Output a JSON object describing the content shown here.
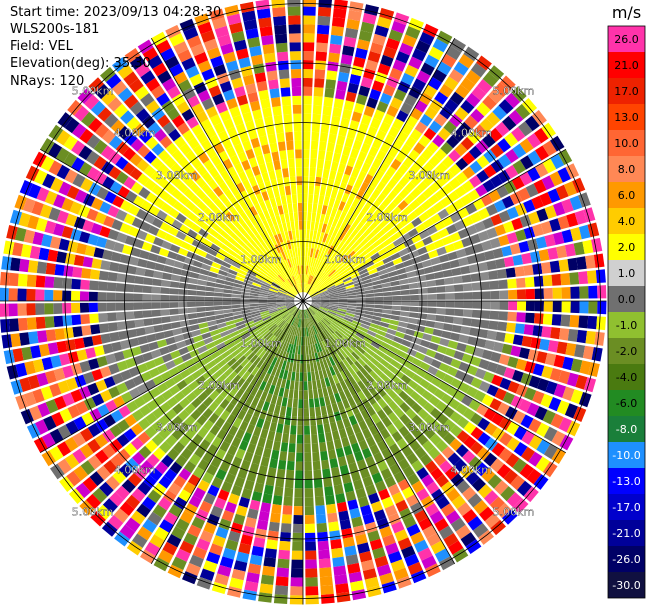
{
  "header": {
    "start_time": "Start time: 2023/09/13 04:28:30",
    "instrument": "WLS200s-181",
    "field": "Field: VEL",
    "elevation": "Elevation(deg): 35.30",
    "nrays": "NRays: 120"
  },
  "chart_data": {
    "type": "heatmap",
    "projection": "polar-ppi",
    "field": "VEL",
    "units": "m/s",
    "nrays": 120,
    "range_rings_km": [
      1.0,
      2.0,
      3.0,
      4.0,
      5.0
    ],
    "ring_labels": [
      "1.00km",
      "2.00km",
      "3.00km",
      "4.00km",
      "5.00km"
    ],
    "max_range_km": 5.1,
    "spokes_deg": [
      0,
      30,
      60,
      90,
      120,
      150,
      180,
      210,
      240,
      270,
      300,
      330
    ],
    "velocity_pattern": {
      "north_sector": "2.0 to 6.0",
      "east_west_band": "-1.0 to 1.0",
      "south_sector": "-2.0 to -6.0",
      "beyond_range_km": 3.4,
      "beyond_range": "noise"
    },
    "colorbar": {
      "label": "m/s",
      "ticks": [
        "26.0",
        "21.0",
        "17.0",
        "13.0",
        "10.0",
        "8.0",
        "6.0",
        "4.0",
        "2.0",
        "1.0",
        "0.0",
        "-1.0",
        "-2.0",
        "-4.0",
        "-6.0",
        "-8.0",
        "-10.0",
        "-13.0",
        "-17.0",
        "-21.0",
        "-26.0",
        "-30.0"
      ],
      "colors": [
        "#ff33aa",
        "#ff0000",
        "#ee2200",
        "#ff4400",
        "#ff6633",
        "#ff8855",
        "#ff9900",
        "#ffcc00",
        "#ffff00",
        "#d0d0d0",
        "#707070",
        "#90c030",
        "#6b8e23",
        "#4a7a10",
        "#228b22",
        "#1a7f3a",
        "#1e90ff",
        "#0000ff",
        "#0000cc",
        "#000099",
        "#000066",
        "#101040"
      ]
    }
  }
}
